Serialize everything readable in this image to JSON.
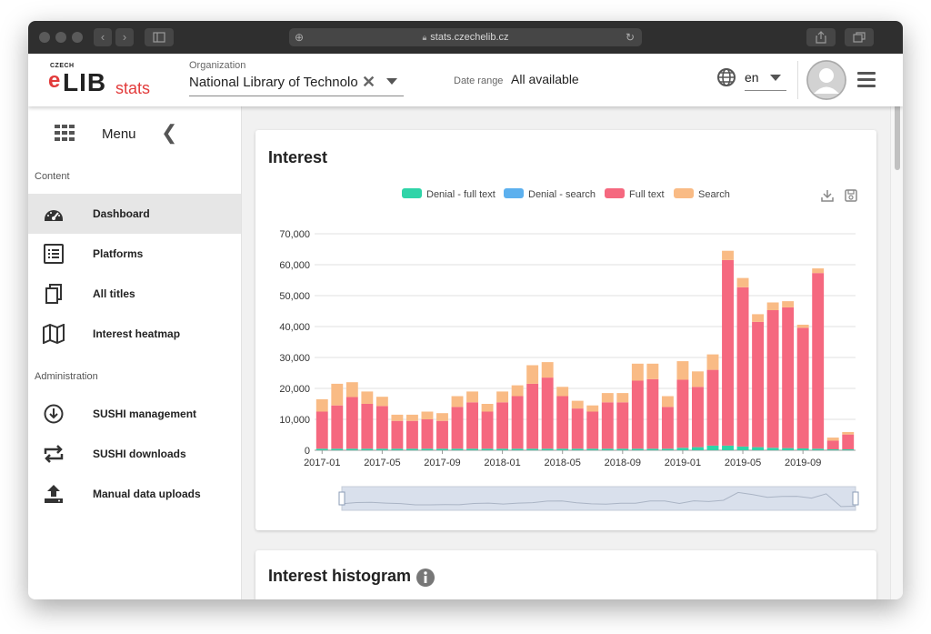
{
  "browser": {
    "url": "stats.czechelib.cz"
  },
  "header": {
    "logo": {
      "czech": "CZECH",
      "e": "e",
      "lib": "LIB",
      "stats": "stats"
    },
    "org_label": "Organization",
    "org_value": "National Library of Technolo",
    "date_label": "Date range",
    "date_value": "All available",
    "lang_value": "en"
  },
  "sidebar": {
    "menu_label": "Menu",
    "sections": {
      "content": "Content",
      "administration": "Administration"
    },
    "items": [
      {
        "label": "Dashboard",
        "icon": "dashboard-gauge-icon",
        "active": true
      },
      {
        "label": "Platforms",
        "icon": "list-icon"
      },
      {
        "label": "All titles",
        "icon": "copy-icon"
      },
      {
        "label": "Interest heatmap",
        "icon": "map-icon"
      },
      {
        "label": "SUSHI management",
        "icon": "download-circle-icon"
      },
      {
        "label": "SUSHI downloads",
        "icon": "repeat-icon"
      },
      {
        "label": "Manual data uploads",
        "icon": "upload-icon"
      }
    ]
  },
  "cards": {
    "interest_title": "Interest",
    "histogram_title": "Interest histogram"
  },
  "chart_data": {
    "type": "bar",
    "stacked": true,
    "title": "Interest",
    "x_tick_labels": [
      "2017-01",
      "2017-05",
      "2017-09",
      "2018-01",
      "2018-05",
      "2018-09",
      "2019-01",
      "2019-05",
      "2019-09"
    ],
    "categories": [
      "2017-01",
      "2017-02",
      "2017-03",
      "2017-04",
      "2017-05",
      "2017-06",
      "2017-07",
      "2017-08",
      "2017-09",
      "2017-10",
      "2017-11",
      "2017-12",
      "2018-01",
      "2018-02",
      "2018-03",
      "2018-04",
      "2018-05",
      "2018-06",
      "2018-07",
      "2018-08",
      "2018-09",
      "2018-10",
      "2018-11",
      "2018-12",
      "2019-01",
      "2019-02",
      "2019-03",
      "2019-04",
      "2019-05",
      "2019-06",
      "2019-07",
      "2019-08",
      "2019-09",
      "2019-10",
      "2019-11",
      "2019-12"
    ],
    "ylim": [
      0,
      70000
    ],
    "yticks": [
      "0",
      "10,000",
      "20,000",
      "30,000",
      "40,000",
      "50,000",
      "60,000",
      "70,000"
    ],
    "ytick_values": [
      0,
      10000,
      20000,
      30000,
      40000,
      50000,
      60000,
      70000
    ],
    "grid": true,
    "legend_position": "top",
    "series": [
      {
        "name": "Denial - full text",
        "color": "#2fd4a8",
        "values": [
          500,
          500,
          500,
          500,
          500,
          500,
          500,
          500,
          500,
          500,
          500,
          500,
          500,
          500,
          500,
          500,
          500,
          500,
          500,
          500,
          500,
          500,
          500,
          500,
          800,
          1000,
          1500,
          1500,
          1200,
          1000,
          800,
          700,
          600,
          500,
          300,
          300
        ]
      },
      {
        "name": "Denial - search",
        "color": "#5cb0ee",
        "values": [
          0,
          0,
          0,
          0,
          0,
          0,
          0,
          0,
          0,
          0,
          0,
          0,
          0,
          0,
          0,
          0,
          0,
          0,
          0,
          0,
          0,
          0,
          0,
          0,
          0,
          0,
          0,
          0,
          0,
          0,
          0,
          0,
          0,
          0,
          0,
          0
        ]
      },
      {
        "name": "Full text",
        "color": "#f5687f",
        "values": [
          12000,
          14000,
          16700,
          14500,
          13800,
          9000,
          9000,
          9500,
          9000,
          13500,
          15000,
          12000,
          15000,
          17000,
          21000,
          23000,
          17000,
          13000,
          12000,
          15000,
          15000,
          22000,
          22500,
          13500,
          22000,
          19500,
          24500,
          60000,
          51500,
          40500,
          44500,
          45500,
          39000,
          56800,
          2800,
          4800
        ]
      },
      {
        "name": "Search",
        "color": "#f9bb85",
        "values": [
          4000,
          7000,
          4800,
          4000,
          3000,
          2000,
          2000,
          2500,
          2500,
          3500,
          3500,
          2500,
          3500,
          3500,
          6000,
          5000,
          3000,
          2500,
          2000,
          3000,
          3000,
          5500,
          5000,
          3500,
          6000,
          5000,
          5000,
          3000,
          3000,
          2500,
          2500,
          2000,
          1000,
          1500,
          1000,
          800
        ]
      }
    ]
  },
  "icons": {
    "globe": "globe-icon",
    "download": "download-icon",
    "save": "save-icon",
    "info": "info-icon"
  }
}
